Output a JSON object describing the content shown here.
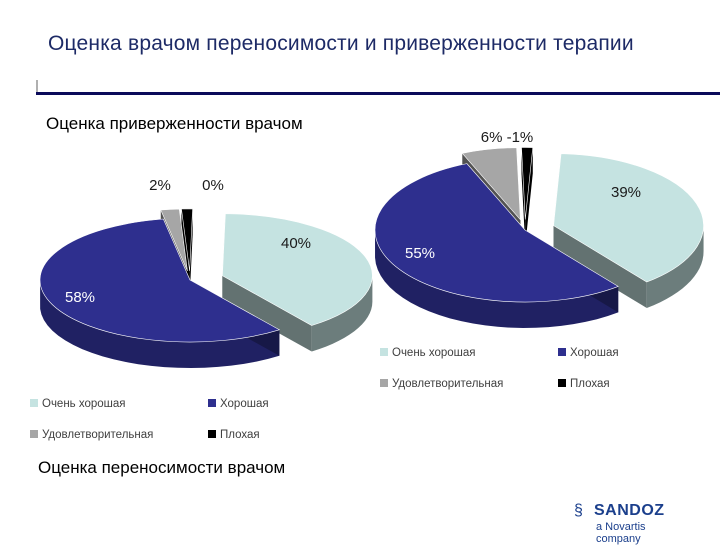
{
  "page": {
    "title": "Оценка врачом переносимости и приверженности терапии",
    "caption_left": "Оценка приверженности врачом",
    "caption_bottom": "Оценка переносимости врачом"
  },
  "chart_data": [
    {
      "type": "pie",
      "categories": [
        "Очень хорошая",
        "Хорошая",
        "Удовлетворительная",
        "Плохая"
      ],
      "values": [
        40,
        58,
        2,
        0
      ],
      "labels": [
        "40%",
        "58%",
        "2%",
        "0%"
      ],
      "colors": [
        "#c5e3e1",
        "#2e2f8e",
        "#a6a6a6",
        "#000000"
      ],
      "legend": "bottom"
    },
    {
      "type": "pie",
      "categories": [
        "Очень хорошая",
        "Хорошая",
        "Удовлетворительная",
        "Плохая"
      ],
      "values": [
        39,
        55,
        6,
        1
      ],
      "labels": [
        "39%",
        "55%",
        "6%",
        "1%"
      ],
      "top_label": "6% -1%",
      "colors": [
        "#c5e3e1",
        "#2e2f8e",
        "#a6a6a6",
        "#000000"
      ],
      "legend": "bottom"
    }
  ],
  "logo": {
    "icon": "sandoz-leaf-icon",
    "brand": "SANDOZ",
    "sub": "a Novartis company"
  }
}
